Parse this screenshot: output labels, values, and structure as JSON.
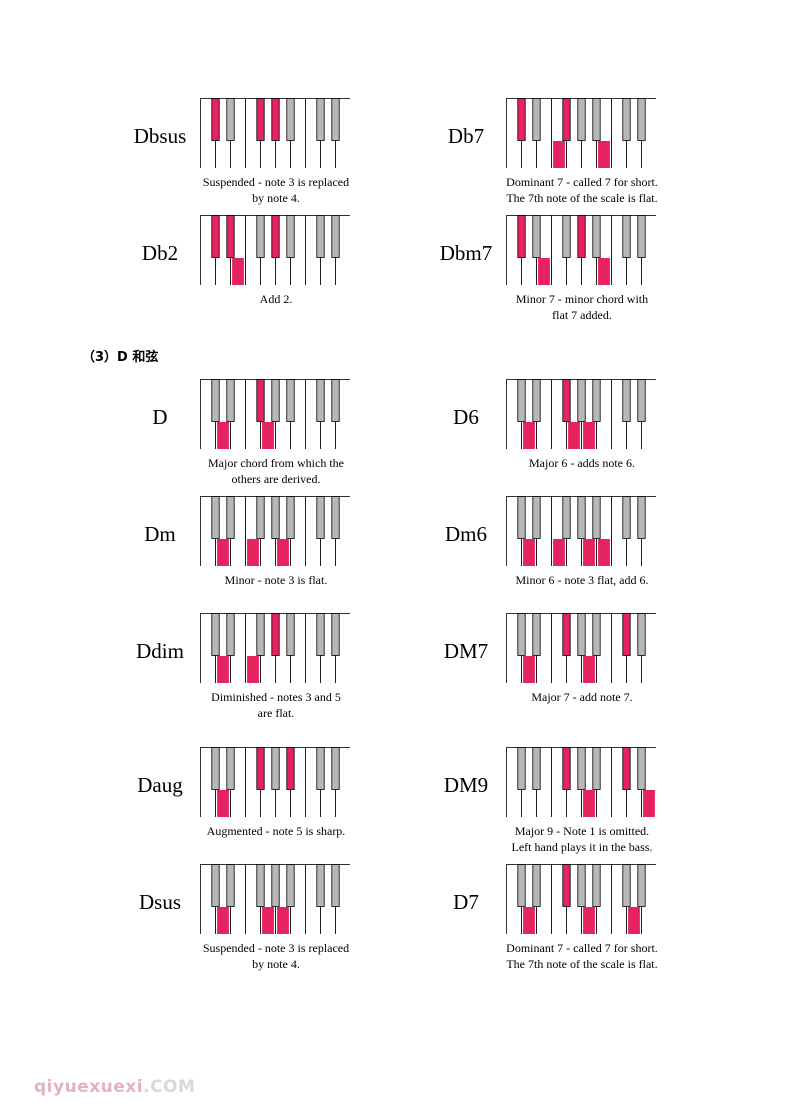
{
  "colors": {
    "highlight": "#e5245f",
    "black_key": "#b7b7b7",
    "outline": "#000000"
  },
  "section_heading": "（3）D 和弦",
  "watermark": {
    "part_a": "qiyuexuexi",
    "part_b": ".COM"
  },
  "chords": [
    {
      "name": "Dbsus",
      "caption": [
        "Suspended - note 3 is replaced",
        "by note 4."
      ],
      "white_pressed": [],
      "black_pressed": [
        0,
        2,
        3
      ]
    },
    {
      "name": "Db7",
      "caption": [
        "Dominant 7 - called 7 for short.",
        "The 7th note of the scale is flat."
      ],
      "white_pressed": [
        3,
        6
      ],
      "black_pressed": [
        0,
        2
      ]
    },
    {
      "name": "Db2",
      "caption": [
        "Add 2."
      ],
      "white_pressed": [
        2
      ],
      "black_pressed": [
        0,
        1,
        3
      ]
    },
    {
      "name": "Dbm7",
      "caption": [
        "Minor 7 - minor chord with",
        "flat 7 added."
      ],
      "white_pressed": [
        2,
        6
      ],
      "black_pressed": [
        0,
        3
      ]
    },
    {
      "name": "D",
      "caption": [
        "Major chord from which the",
        "others are derived."
      ],
      "white_pressed": [
        1,
        4
      ],
      "black_pressed": [
        2
      ]
    },
    {
      "name": "D6",
      "caption": [
        "Major 6 - adds note 6."
      ],
      "white_pressed": [
        1,
        4,
        5
      ],
      "black_pressed": [
        2
      ]
    },
    {
      "name": "Dm",
      "caption": [
        "Minor - note 3 is flat."
      ],
      "white_pressed": [
        1,
        3,
        5
      ],
      "black_pressed": []
    },
    {
      "name": "Dm6",
      "caption": [
        "Minor 6 - note 3 flat, add 6."
      ],
      "white_pressed": [
        1,
        3,
        5,
        6
      ],
      "black_pressed": []
    },
    {
      "name": "Ddim",
      "caption": [
        "Diminished - notes 3 and 5",
        "are flat."
      ],
      "white_pressed": [
        1,
        3
      ],
      "black_pressed": [
        3
      ]
    },
    {
      "name": "DM7",
      "caption": [
        "Major 7 - add note 7."
      ],
      "white_pressed": [
        1,
        5
      ],
      "black_pressed": [
        2,
        5
      ]
    },
    {
      "name": "Daug",
      "caption": [
        "Augmented - note 5 is sharp."
      ],
      "white_pressed": [
        1
      ],
      "black_pressed": [
        2,
        4
      ]
    },
    {
      "name": "DM9",
      "caption": [
        "Major 9 - Note 1 is omitted.",
        "Left hand plays it in the bass."
      ],
      "white_pressed": [
        5,
        9
      ],
      "black_pressed": [
        2,
        5
      ]
    },
    {
      "name": "Dsus",
      "caption": [
        "Suspended - note 3 is replaced",
        "by note 4."
      ],
      "white_pressed": [
        1,
        4,
        5
      ],
      "black_pressed": []
    },
    {
      "name": "D7",
      "caption": [
        "Dominant 7 - called 7 for short.",
        "The 7th note of the scale is flat."
      ],
      "white_pressed": [
        1,
        5,
        8
      ],
      "black_pressed": [
        2
      ]
    }
  ]
}
